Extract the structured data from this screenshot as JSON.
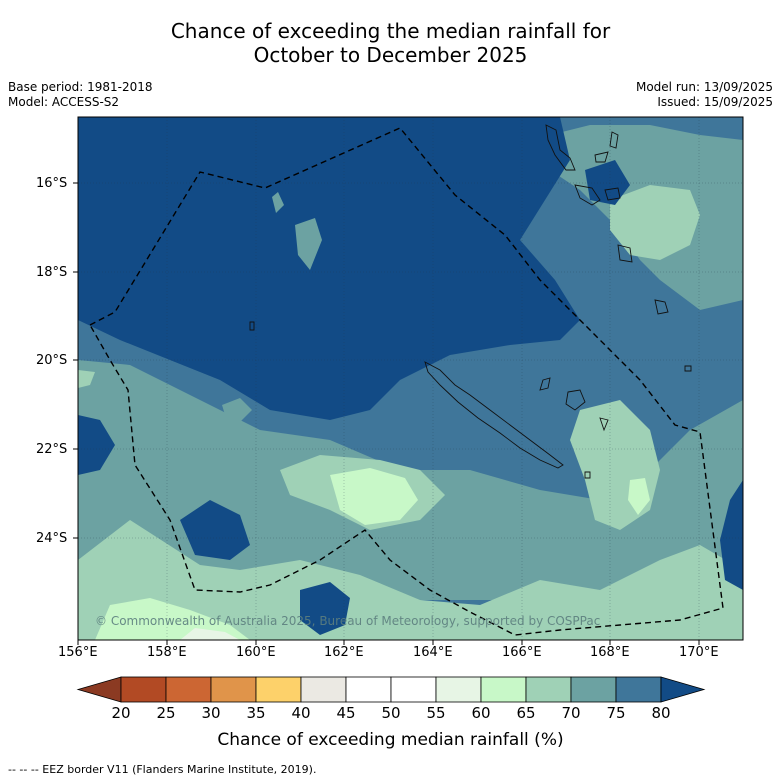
{
  "title_line1": "Chance of exceeding the median rainfall for",
  "title_line2": "October to December 2025",
  "meta": {
    "base_period": "Base period: 1981-2018",
    "model": "Model: ACCESS-S2",
    "model_run": "Model run: 13/09/2025",
    "issued": "Issued: 15/09/2025"
  },
  "map": {
    "y_ticks": [
      "16°S",
      "18°S",
      "20°S",
      "22°S",
      "24°S"
    ],
    "x_ticks": [
      "156°E",
      "158°E",
      "160°E",
      "162°E",
      "164°E",
      "166°E",
      "168°E",
      "170°E"
    ],
    "copyright": "© Commonwealth of Australia 2025, Bureau of Meteorology, supported by COSPPac"
  },
  "colorbar": {
    "labels": [
      "20",
      "25",
      "30",
      "35",
      "40",
      "45",
      "50",
      "55",
      "60",
      "65",
      "70",
      "75",
      "80"
    ],
    "colors": [
      "#8b3a22",
      "#b24a24",
      "#cc6633",
      "#e0944a",
      "#fdd16a",
      "#ebe9e3",
      "#ffffff",
      "#ffffff",
      "#e7f5e5",
      "#c8f8c8",
      "#9fd1b6",
      "#6ca2a2",
      "#3f769a",
      "#124b86"
    ],
    "title": "Chance of exceeding median rainfall (%)"
  },
  "footer": "--  --  -- EEZ border V11 (Flanders Marine Institute, 2019)."
}
